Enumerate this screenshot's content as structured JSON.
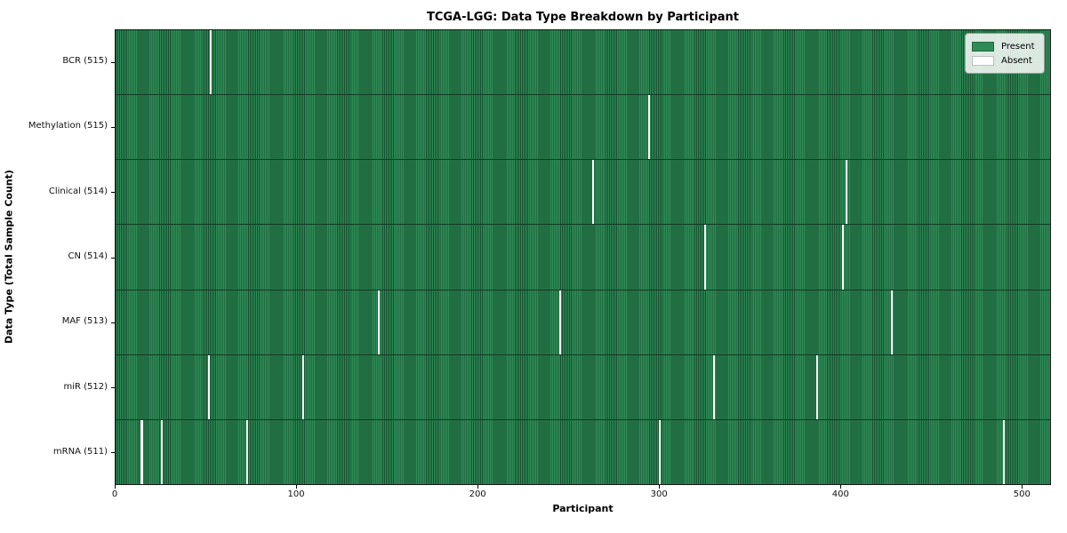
{
  "figure": {
    "title": "TCGA-LGG: Data Type Breakdown by Participant",
    "xlabel": "Participant",
    "ylabel": "Data Type (Total Sample Count)"
  },
  "legend": {
    "items": [
      {
        "label": "Present",
        "color": "#2e8b57"
      },
      {
        "label": "Absent",
        "color": "#ffffff"
      }
    ]
  },
  "colors": {
    "present": "#2e8b57",
    "present_edge": "#17502f",
    "absent": "#fbfbf8",
    "row_separator": "#123a23",
    "plot_border": "#1a1a1a"
  },
  "chart_data": {
    "type": "heatmap",
    "title": "TCGA-LGG: Data Type Breakdown by Participant",
    "xlabel": "Participant",
    "ylabel": "Data Type (Total Sample Count)",
    "n_participants": 516,
    "x_ticks": [
      0,
      100,
      200,
      300,
      400,
      500
    ],
    "legend_position": "upper right",
    "grid": false,
    "value_encoding": {
      "present": 1,
      "absent": 0
    },
    "rows": [
      {
        "label": "BCR (515)",
        "total_samples": 515,
        "absent_participants": [
          52
        ]
      },
      {
        "label": "Methylation (515)",
        "total_samples": 515,
        "absent_participants": [
          294
        ]
      },
      {
        "label": "Clinical (514)",
        "total_samples": 514,
        "absent_participants": [
          263,
          403
        ]
      },
      {
        "label": "CN (514)",
        "total_samples": 514,
        "absent_participants": [
          325,
          401
        ]
      },
      {
        "label": "MAF (513)",
        "total_samples": 513,
        "absent_participants": [
          145,
          245,
          428
        ]
      },
      {
        "label": "miR (512)",
        "total_samples": 512,
        "absent_participants": [
          51,
          103,
          330,
          387
        ]
      },
      {
        "label": "mRNA (511)",
        "total_samples": 511,
        "absent_participants": [
          14,
          25,
          72,
          300,
          490
        ]
      }
    ]
  }
}
